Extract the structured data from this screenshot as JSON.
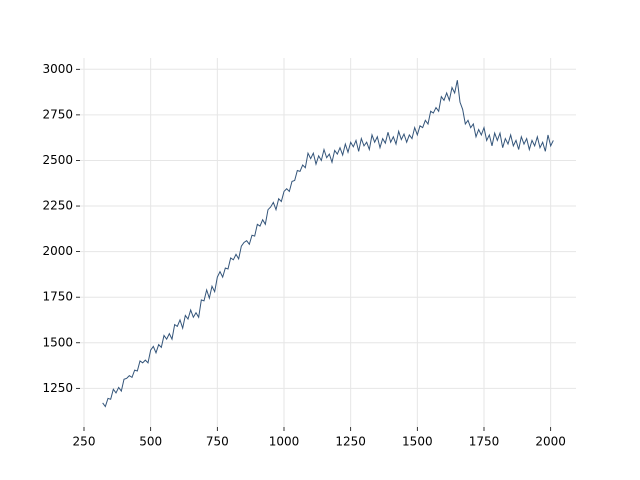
{
  "chart_data": {
    "type": "line",
    "x": [
      320,
      330,
      340,
      350,
      360,
      370,
      380,
      390,
      400,
      410,
      420,
      430,
      440,
      450,
      460,
      470,
      480,
      490,
      500,
      510,
      520,
      530,
      540,
      550,
      560,
      570,
      580,
      590,
      600,
      610,
      620,
      630,
      640,
      650,
      660,
      670,
      680,
      690,
      700,
      710,
      720,
      730,
      740,
      750,
      760,
      770,
      780,
      790,
      800,
      810,
      820,
      830,
      840,
      850,
      860,
      870,
      880,
      890,
      900,
      910,
      920,
      930,
      940,
      950,
      960,
      970,
      980,
      990,
      1000,
      1010,
      1020,
      1030,
      1040,
      1050,
      1060,
      1070,
      1080,
      1090,
      1100,
      1110,
      1120,
      1130,
      1140,
      1150,
      1160,
      1170,
      1180,
      1190,
      1200,
      1210,
      1220,
      1230,
      1240,
      1250,
      1260,
      1270,
      1280,
      1290,
      1300,
      1310,
      1320,
      1330,
      1340,
      1350,
      1360,
      1370,
      1380,
      1390,
      1400,
      1410,
      1420,
      1430,
      1440,
      1450,
      1460,
      1470,
      1480,
      1490,
      1500,
      1510,
      1520,
      1530,
      1540,
      1550,
      1560,
      1570,
      1580,
      1590,
      1600,
      1610,
      1620,
      1630,
      1640,
      1650,
      1660,
      1670,
      1680,
      1690,
      1700,
      1710,
      1720,
      1730,
      1740,
      1750,
      1760,
      1770,
      1780,
      1790,
      1800,
      1810,
      1820,
      1830,
      1840,
      1850,
      1860,
      1870,
      1880,
      1890,
      1900,
      1910,
      1920,
      1930,
      1940,
      1950,
      1960,
      1970,
      1980,
      1990,
      2000,
      2010
    ],
    "series": [
      {
        "color": "#34557a",
        "values": [
          1170,
          1150,
          1195,
          1190,
          1245,
          1225,
          1255,
          1235,
          1300,
          1305,
          1320,
          1310,
          1350,
          1345,
          1400,
          1390,
          1405,
          1390,
          1460,
          1480,
          1445,
          1490,
          1475,
          1540,
          1520,
          1550,
          1520,
          1600,
          1590,
          1625,
          1580,
          1650,
          1630,
          1680,
          1640,
          1665,
          1640,
          1735,
          1730,
          1790,
          1745,
          1810,
          1780,
          1860,
          1890,
          1860,
          1910,
          1905,
          1965,
          1955,
          1985,
          1960,
          2030,
          2050,
          2060,
          2040,
          2090,
          2085,
          2150,
          2140,
          2175,
          2150,
          2230,
          2245,
          2270,
          2230,
          2290,
          2275,
          2330,
          2345,
          2330,
          2385,
          2390,
          2445,
          2440,
          2475,
          2460,
          2540,
          2510,
          2540,
          2480,
          2525,
          2500,
          2560,
          2515,
          2535,
          2490,
          2555,
          2535,
          2570,
          2530,
          2590,
          2545,
          2600,
          2575,
          2610,
          2550,
          2620,
          2580,
          2600,
          2560,
          2640,
          2600,
          2630,
          2570,
          2620,
          2595,
          2655,
          2600,
          2630,
          2590,
          2660,
          2615,
          2645,
          2600,
          2640,
          2620,
          2680,
          2640,
          2690,
          2680,
          2720,
          2700,
          2770,
          2760,
          2790,
          2770,
          2850,
          2830,
          2870,
          2830,
          2900,
          2870,
          2940,
          2820,
          2780,
          2700,
          2720,
          2680,
          2700,
          2630,
          2670,
          2640,
          2680,
          2610,
          2640,
          2580,
          2650,
          2610,
          2650,
          2570,
          2620,
          2590,
          2640,
          2580,
          2610,
          2560,
          2630,
          2590,
          2620,
          2560,
          2610,
          2580,
          2630,
          2570,
          2600,
          2550,
          2640,
          2580,
          2610
        ]
      }
    ],
    "xlim": [
      235,
      2095
    ],
    "xticks": [
      250,
      500,
      750,
      1000,
      1250,
      1500,
      1750,
      2000
    ],
    "ylim": [
      1038,
      3062
    ],
    "yticks": [
      1250,
      1500,
      1750,
      2000,
      2250,
      2500,
      2750,
      3000
    ],
    "grid": true
  }
}
